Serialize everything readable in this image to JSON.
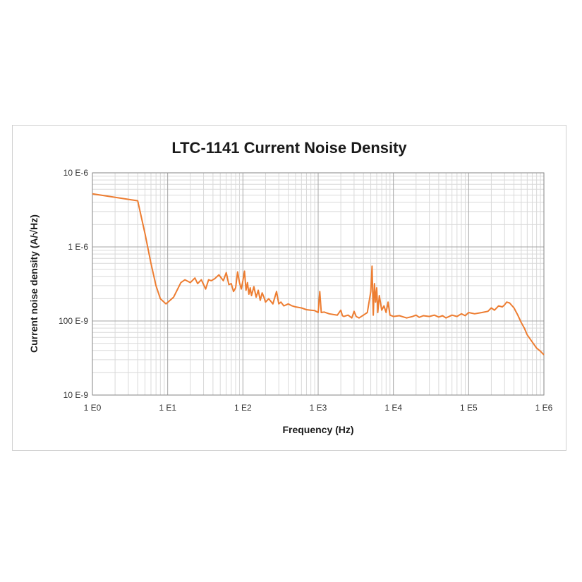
{
  "chart_data": {
    "type": "line",
    "title": "LTC-1141 Current Noise Density",
    "xlabel": "Frequency (Hz)",
    "ylabel": "Current noise density (A/√Hz)",
    "x_scale": "log",
    "y_scale": "log",
    "xlim": [
      1,
      1000000
    ],
    "ylim": [
      1e-08,
      1e-05
    ],
    "x_ticks": [
      {
        "value": 1,
        "label": "1 E0"
      },
      {
        "value": 10,
        "label": "1 E1"
      },
      {
        "value": 100,
        "label": "1 E2"
      },
      {
        "value": 1000,
        "label": "1 E3"
      },
      {
        "value": 10000,
        "label": "1 E4"
      },
      {
        "value": 100000,
        "label": "1 E5"
      },
      {
        "value": 1000000,
        "label": "1 E6"
      }
    ],
    "y_ticks": [
      {
        "value": 1e-08,
        "label": "10 E-9"
      },
      {
        "value": 1e-07,
        "label": "100 E-9"
      },
      {
        "value": 1e-06,
        "label": "1 E-6"
      },
      {
        "value": 1e-05,
        "label": "10 E-6"
      }
    ],
    "grid": true,
    "legend": "none",
    "series": [
      {
        "color": "#ed7d31",
        "x": [
          1,
          4,
          5,
          6,
          7,
          8,
          9.5,
          12,
          15,
          17,
          20,
          23,
          25,
          28,
          32,
          35,
          38,
          42,
          48,
          55,
          60,
          65,
          70,
          75,
          80,
          85,
          90,
          95,
          100,
          105,
          110,
          115,
          120,
          125,
          130,
          140,
          150,
          160,
          170,
          180,
          190,
          200,
          220,
          250,
          280,
          300,
          320,
          350,
          400,
          450,
          500,
          600,
          700,
          800,
          900,
          1000,
          1050,
          1100,
          1200,
          1400,
          1600,
          1800,
          2000,
          2100,
          2200,
          2500,
          2800,
          3000,
          3200,
          3500,
          4000,
          4500,
          5000,
          5200,
          5400,
          5600,
          5800,
          6000,
          6200,
          6500,
          7000,
          7500,
          8000,
          8500,
          9000,
          10000,
          12000,
          15000,
          18000,
          20000,
          22000,
          25000,
          30000,
          35000,
          40000,
          45000,
          50000,
          60000,
          70000,
          80000,
          90000,
          100000,
          120000,
          150000,
          180000,
          200000,
          220000,
          250000,
          280000,
          300000,
          320000,
          350000,
          400000,
          450000,
          500000,
          550000,
          600000,
          700000,
          800000,
          900000,
          1000000
        ],
        "y": [
          5.2e-06,
          4.2e-06,
          1.5e-06,
          6e-07,
          3e-07,
          2e-07,
          1.7e-07,
          2.1e-07,
          3.3e-07,
          3.6e-07,
          3.3e-07,
          3.8e-07,
          3.2e-07,
          3.6e-07,
          2.7e-07,
          3.6e-07,
          3.5e-07,
          3.7e-07,
          4.2e-07,
          3.5e-07,
          4.5e-07,
          3.1e-07,
          3.2e-07,
          2.5e-07,
          2.8e-07,
          4.6e-07,
          3.3e-07,
          2.7e-07,
          3.5e-07,
          4.7e-07,
          2.6e-07,
          3.3e-07,
          2.3e-07,
          2.8e-07,
          2.2e-07,
          2.9e-07,
          2.1e-07,
          2.6e-07,
          1.9e-07,
          2.4e-07,
          2.1e-07,
          1.8e-07,
          2e-07,
          1.7e-07,
          2.5e-07,
          1.7e-07,
          1.8e-07,
          1.6e-07,
          1.7e-07,
          1.6e-07,
          1.55e-07,
          1.5e-07,
          1.42e-07,
          1.4e-07,
          1.38e-07,
          1.3e-07,
          2.5e-07,
          1.3e-07,
          1.32e-07,
          1.25e-07,
          1.22e-07,
          1.2e-07,
          1.4e-07,
          1.18e-07,
          1.15e-07,
          1.2e-07,
          1.1e-07,
          1.35e-07,
          1.15e-07,
          1.1e-07,
          1.2e-07,
          1.3e-07,
          2.5e-07,
          5.5e-07,
          1.2e-07,
          3.2e-07,
          1.8e-07,
          2.8e-07,
          1.3e-07,
          2.2e-07,
          1.4e-07,
          1.6e-07,
          1.3e-07,
          1.8e-07,
          1.2e-07,
          1.15e-07,
          1.18e-07,
          1.1e-07,
          1.15e-07,
          1.2e-07,
          1.12e-07,
          1.18e-07,
          1.15e-07,
          1.2e-07,
          1.13e-07,
          1.18e-07,
          1.1e-07,
          1.2e-07,
          1.15e-07,
          1.25e-07,
          1.18e-07,
          1.3e-07,
          1.25e-07,
          1.3e-07,
          1.35e-07,
          1.5e-07,
          1.4e-07,
          1.6e-07,
          1.55e-07,
          1.65e-07,
          1.8e-07,
          1.75e-07,
          1.5e-07,
          1.2e-07,
          9.5e-08,
          8e-08,
          6.5e-08,
          5.2e-08,
          4.3e-08,
          3.9e-08,
          3.5e-08
        ]
      }
    ]
  }
}
